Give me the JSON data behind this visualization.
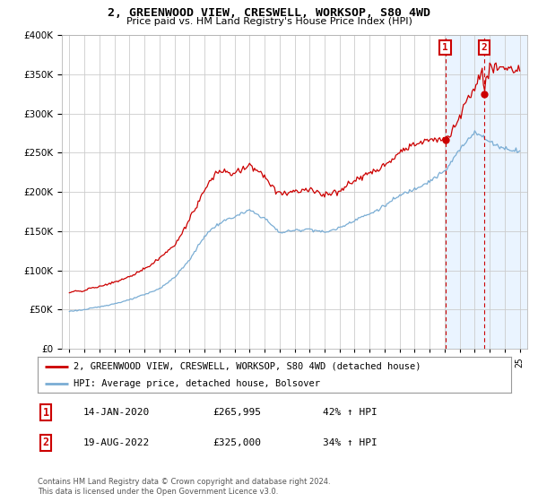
{
  "title": "2, GREENWOOD VIEW, CRESWELL, WORKSOP, S80 4WD",
  "subtitle": "Price paid vs. HM Land Registry's House Price Index (HPI)",
  "legend_line1": "2, GREENWOOD VIEW, CRESWELL, WORKSOP, S80 4WD (detached house)",
  "legend_line2": "HPI: Average price, detached house, Bolsover",
  "transaction1_date": "14-JAN-2020",
  "transaction1_price": "£265,995",
  "transaction1_hpi": "42% ↑ HPI",
  "transaction1_year": 2020.04,
  "transaction1_value": 265995,
  "transaction2_date": "19-AUG-2022",
  "transaction2_price": "£325,000",
  "transaction2_hpi": "34% ↑ HPI",
  "transaction2_year": 2022.63,
  "transaction2_value": 325000,
  "red_color": "#cc0000",
  "blue_color": "#7aadd4",
  "shade_color": "#ddeeff",
  "background_color": "#ffffff",
  "grid_color": "#cccccc",
  "ylim_max": 400000,
  "copyright_text": "Contains HM Land Registry data © Crown copyright and database right 2024.\nThis data is licensed under the Open Government Licence v3.0."
}
